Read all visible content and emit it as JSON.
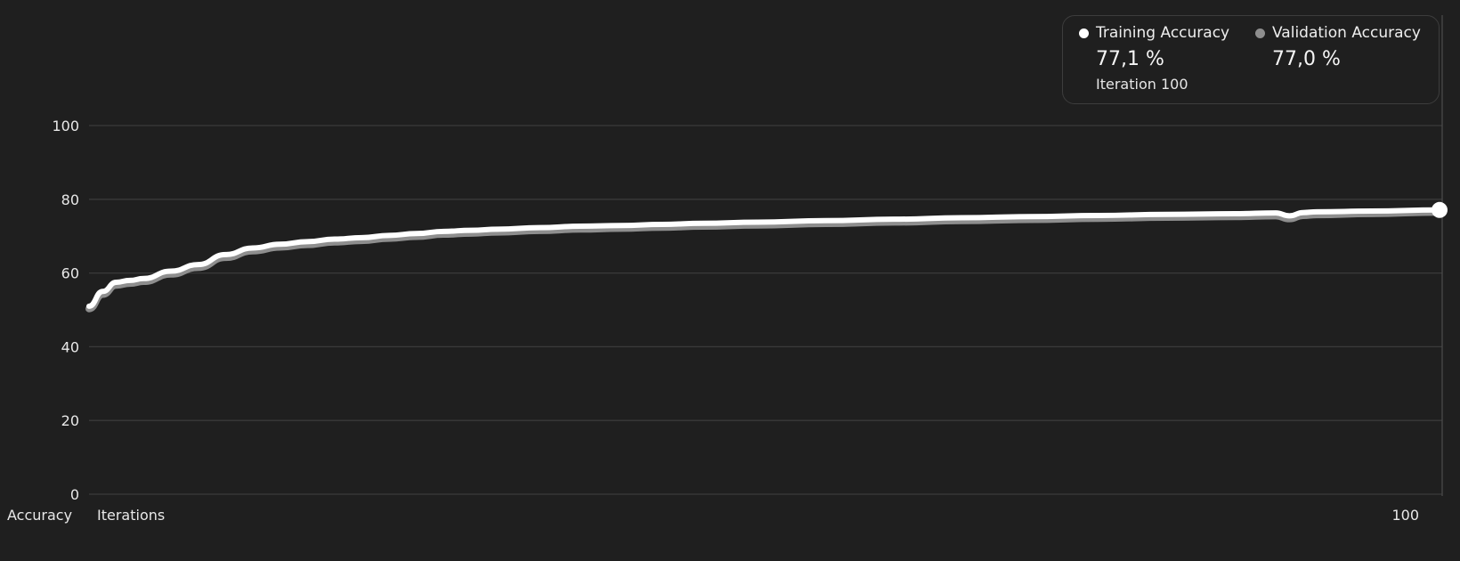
{
  "colors": {
    "background": "#1f1f1f",
    "grid": "#3a3a3a",
    "training": "#ffffff",
    "validation": "#8e8e8e",
    "text": "#e8e8e8"
  },
  "legend": {
    "training_label": "Training Accuracy",
    "training_value": "77,1 %",
    "validation_label": "Validation Accuracy",
    "validation_value": "77,0 %",
    "iteration_text": "Iteration 100"
  },
  "chart_data": {
    "type": "line",
    "ylabel": "Accuracy",
    "xlabel": "Iterations",
    "ylim": [
      0,
      100
    ],
    "xlim": [
      1,
      100
    ],
    "yticks": [
      "0",
      "20",
      "40",
      "60",
      "80",
      "100"
    ],
    "xticks": [
      "100"
    ],
    "grid": true,
    "legend_position": "top-right",
    "highlight_iteration": 100,
    "series": [
      {
        "name": "Training Accuracy",
        "color": "#ffffff",
        "x": [
          1,
          2,
          3,
          4,
          5,
          7,
          9,
          11,
          13,
          15,
          17,
          19,
          21,
          23,
          25,
          27,
          29,
          31,
          34,
          37,
          40,
          43,
          46,
          50,
          55,
          60,
          65,
          70,
          75,
          80,
          85,
          88,
          89,
          90,
          91,
          95,
          100
        ],
        "values": [
          51,
          55,
          57.5,
          58,
          58.5,
          60.5,
          62.3,
          65,
          66.8,
          67.8,
          68.5,
          69.2,
          69.6,
          70.2,
          70.7,
          71.3,
          71.6,
          71.9,
          72.3,
          72.7,
          72.9,
          73.2,
          73.5,
          73.8,
          74.2,
          74.6,
          75.0,
          75.3,
          75.6,
          75.9,
          76.1,
          76.3,
          75.5,
          76.4,
          76.6,
          76.8,
          77.1
        ]
      },
      {
        "name": "Validation Accuracy",
        "color": "#8e8e8e",
        "x": [
          1,
          2,
          3,
          4,
          5,
          7,
          9,
          11,
          13,
          15,
          17,
          19,
          21,
          23,
          25,
          27,
          29,
          31,
          34,
          37,
          40,
          43,
          46,
          50,
          55,
          60,
          65,
          70,
          75,
          80,
          85,
          88,
          89,
          90,
          91,
          95,
          100
        ],
        "values": [
          50.8,
          54.7,
          57.2,
          57.7,
          58.2,
          60.2,
          62.0,
          64.7,
          66.5,
          67.5,
          68.2,
          68.9,
          69.3,
          69.9,
          70.4,
          71.0,
          71.3,
          71.6,
          72.0,
          72.4,
          72.6,
          72.9,
          73.2,
          73.5,
          73.9,
          74.3,
          74.7,
          75.0,
          75.3,
          75.6,
          75.8,
          76.0,
          75.2,
          76.1,
          76.3,
          76.6,
          77.0
        ]
      }
    ]
  }
}
